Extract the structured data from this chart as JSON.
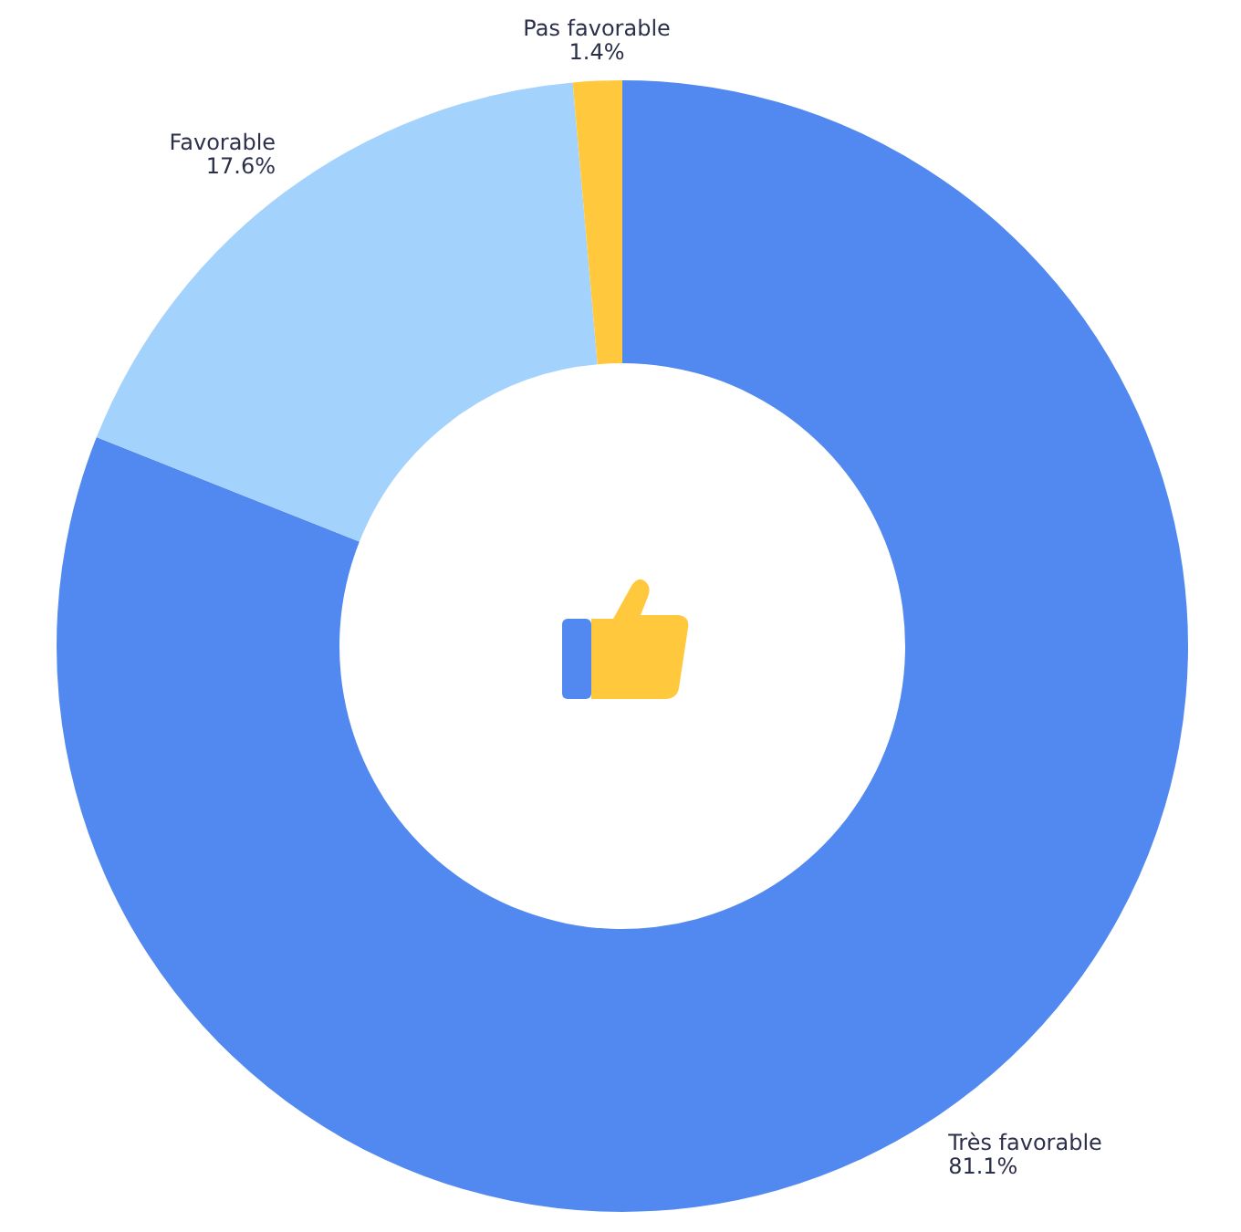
{
  "chart_data": {
    "type": "donut",
    "categories": [
      "Très favorable",
      "Favorable",
      "Pas favorable"
    ],
    "values": [
      81.1,
      17.6,
      1.4
    ],
    "colors": [
      "#5289f0",
      "#a3d3fd",
      "#ffc83d"
    ],
    "value_labels": [
      "81.1%",
      "17.6%",
      "1.4%"
    ],
    "legend": false
  }
}
